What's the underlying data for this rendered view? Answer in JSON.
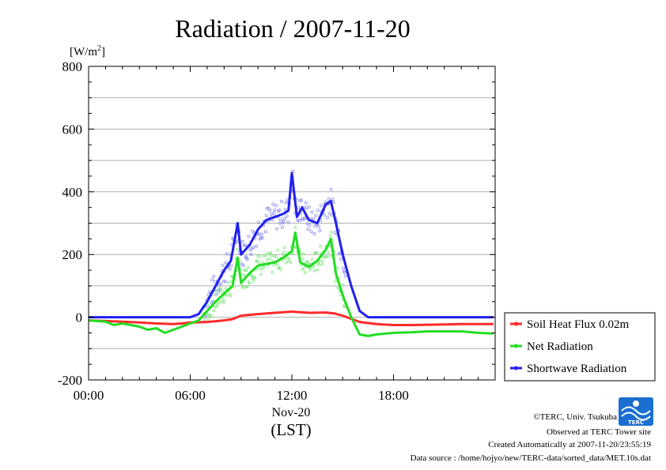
{
  "header": {
    "title": "Radiation / 2007-11-20"
  },
  "colors": {
    "soil": "#ff2b2b",
    "net": "#22dd22",
    "shortwave": "#2020ee",
    "grid": "#b0b0b0",
    "shortwave_points": "#8f8ff0",
    "net_points": "#80e880"
  },
  "chart_data": {
    "type": "line",
    "title": "Radiation / 2007-11-20",
    "ylabel": "[W/m2]",
    "ylabel_base": "[W/m",
    "ylabel_sup": "2",
    "ylabel_close": "]",
    "xlabel_date": "Nov-20",
    "xlabel_tz": "(LST)",
    "xlim": [
      0,
      24
    ],
    "ylim": [
      -200,
      800
    ],
    "y_ticks": [
      800,
      600,
      400,
      200,
      0,
      -200
    ],
    "y_tick_labels": [
      "800",
      "600",
      "400",
      "200",
      "0",
      "-200"
    ],
    "x_ticks": [
      0,
      6,
      12,
      18
    ],
    "x_tick_labels": [
      "00:00",
      "06:00",
      "12:00",
      "18:00"
    ],
    "grid": true,
    "legend_position": "right",
    "series": [
      {
        "name": "Soil Heat Flux 0.02m",
        "color": "#ff2b2b",
        "x": [
          0,
          1,
          2,
          3,
          4,
          5,
          5.5,
          6,
          7,
          8,
          8.5,
          9,
          10,
          11,
          11.5,
          12,
          12.5,
          13,
          14,
          14.5,
          15,
          15.5,
          16,
          17,
          18,
          19,
          20,
          21,
          22,
          23,
          23.9
        ],
        "y": [
          -10,
          -12,
          -14,
          -17,
          -20,
          -22,
          -20,
          -17,
          -15,
          -10,
          -6,
          5,
          10,
          14,
          16,
          18,
          16,
          14,
          15,
          12,
          5,
          -5,
          -15,
          -22,
          -25,
          -25,
          -24,
          -23,
          -22,
          -22,
          -22
        ]
      },
      {
        "name": "Net Radiation",
        "color": "#22dd22",
        "x": [
          0,
          1,
          1.5,
          2,
          3,
          3.5,
          4,
          4.5,
          5,
          5.5,
          6,
          6.5,
          7,
          7.5,
          8,
          8.5,
          8.8,
          9,
          9.5,
          10,
          10.5,
          11,
          11.5,
          12,
          12.2,
          12.5,
          13,
          13.5,
          14,
          14.3,
          14.6,
          15,
          15.5,
          16,
          16.5,
          17,
          18,
          19,
          20,
          21,
          22,
          23,
          23.9
        ],
        "y": [
          -10,
          -14,
          -25,
          -20,
          -30,
          -40,
          -35,
          -50,
          -40,
          -30,
          -20,
          -10,
          20,
          50,
          75,
          100,
          190,
          110,
          140,
          165,
          170,
          175,
          190,
          210,
          270,
          175,
          160,
          180,
          215,
          250,
          140,
          70,
          0,
          -55,
          -60,
          -55,
          -50,
          -48,
          -45,
          -45,
          -45,
          -50,
          -52
        ]
      },
      {
        "name": "Shortwave Radiation",
        "color": "#2020ee",
        "x": [
          0,
          1,
          2,
          3,
          4,
          5,
          6,
          6.5,
          7,
          7.5,
          8,
          8.4,
          8.8,
          9,
          9.5,
          10,
          10.5,
          11,
          11.5,
          11.8,
          12,
          12.3,
          12.6,
          13,
          13.5,
          14,
          14.3,
          14.6,
          15,
          15.5,
          16,
          16.5,
          17,
          18,
          19,
          20,
          21,
          22,
          23,
          23.9
        ],
        "y": [
          0,
          0,
          0,
          0,
          0,
          0,
          0,
          10,
          50,
          100,
          150,
          180,
          300,
          200,
          230,
          280,
          310,
          320,
          330,
          340,
          460,
          320,
          350,
          310,
          300,
          360,
          370,
          300,
          200,
          100,
          20,
          0,
          0,
          0,
          0,
          0,
          0,
          0,
          0,
          0
        ]
      }
    ]
  },
  "credits": {
    "copyright": "©TERC, Univ. Tsukuba",
    "site": "Observed at TERC Tower site",
    "created": "Created Automatically at 2007-11-20/23:55:19",
    "source": "Data source : /home/hojyo/new/TERC-data/sorted_data/MET.10s.dat"
  },
  "logo": {
    "text": "TERC",
    "color": "#1a6fd0"
  }
}
